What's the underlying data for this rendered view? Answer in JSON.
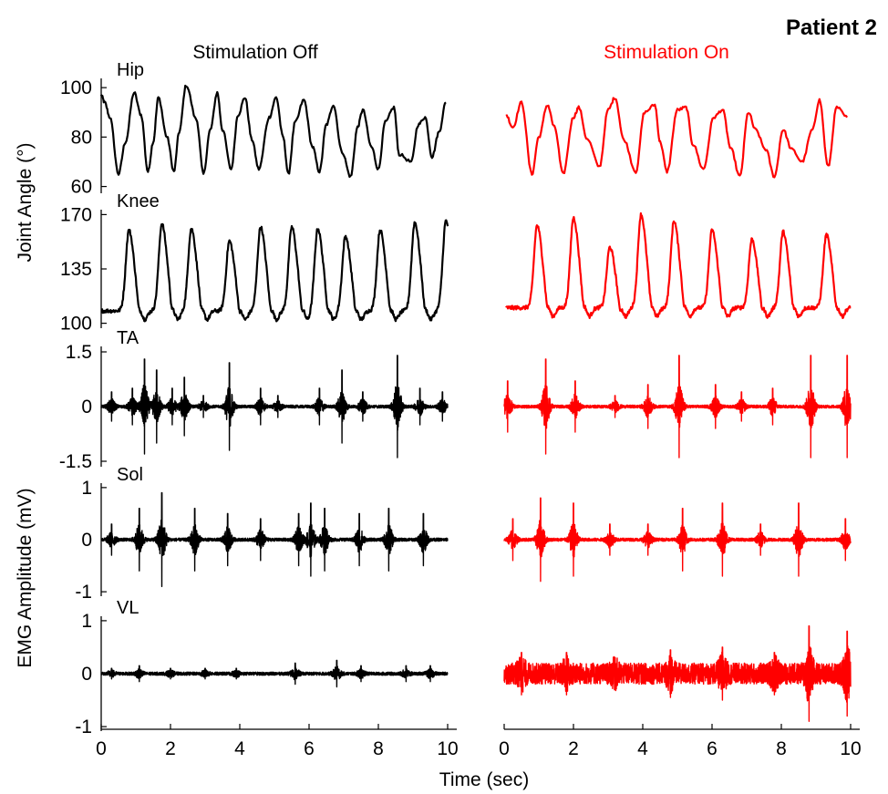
{
  "figure": {
    "title": "Patient 2",
    "col_off_title": "Stimulation Off",
    "col_on_title": "Stimulation On",
    "ylabel_angle": "Joint Angle (°)",
    "ylabel_emg": "EMG Amplitude (mV)",
    "xlabel": "Time (sec)",
    "colors": {
      "off": "#000000",
      "on": "#ff0000",
      "axis": "#000000"
    }
  },
  "chart_data": [
    {
      "type": "line",
      "panel": "hip",
      "label": "Hip",
      "x_range": [
        0,
        10
      ],
      "ylim": [
        58,
        103
      ],
      "yticks": [
        60,
        80,
        100
      ],
      "series": [
        {
          "condition": "off",
          "x": [
            0,
            0.1,
            0.25,
            0.5,
            0.7,
            0.95,
            1.15,
            1.35,
            1.5,
            1.65,
            1.9,
            2.1,
            2.25,
            2.45,
            2.75,
            2.95,
            3.15,
            3.35,
            3.5,
            3.75,
            3.95,
            4.15,
            4.35,
            4.55,
            4.85,
            5.05,
            5.25,
            5.4,
            5.6,
            5.85,
            6.1,
            6.3,
            6.5,
            6.7,
            6.95,
            7.2,
            7.4,
            7.55,
            7.8,
            8.0,
            8.2,
            8.45,
            8.6,
            8.95,
            9.15,
            9.35,
            9.55,
            9.75,
            9.95
          ],
          "y": [
            97,
            94,
            88,
            65,
            78,
            98,
            89,
            66,
            78,
            96,
            80,
            66,
            82,
            101,
            87,
            65,
            83,
            98,
            83,
            67,
            89,
            96,
            79,
            67,
            88,
            96,
            80,
            65,
            86,
            95,
            76,
            66,
            85,
            93,
            74,
            64,
            84,
            91,
            76,
            67,
            86,
            92,
            73,
            70,
            85,
            88,
            72,
            82,
            94
          ]
        },
        {
          "condition": "on",
          "x": [
            0.05,
            0.25,
            0.5,
            0.8,
            1.0,
            1.25,
            1.45,
            1.7,
            2.0,
            2.15,
            2.4,
            2.75,
            3.0,
            3.2,
            3.45,
            3.8,
            4.05,
            4.35,
            4.5,
            4.7,
            5.0,
            5.25,
            5.45,
            5.75,
            6.05,
            6.3,
            6.55,
            6.8,
            7.05,
            7.25,
            7.55,
            7.8,
            8.05,
            8.3,
            8.6,
            8.9,
            9.1,
            9.35,
            9.6,
            9.9
          ],
          "y": [
            89,
            84,
            94,
            65,
            80,
            93,
            84,
            65,
            88,
            92,
            79,
            68,
            91,
            96,
            79,
            66,
            90,
            93,
            78,
            66,
            91,
            92,
            77,
            67,
            88,
            91,
            75,
            64,
            90,
            83,
            75,
            64,
            83,
            75,
            70,
            83,
            95,
            68,
            92,
            88
          ]
        }
      ]
    },
    {
      "type": "line",
      "panel": "knee",
      "label": "Knee",
      "x_range": [
        0,
        10
      ],
      "ylim": [
        98,
        172
      ],
      "yticks": [
        100,
        135,
        170
      ],
      "series": [
        {
          "condition": "off",
          "peaks_t": [
            0.8,
            1.75,
            2.6,
            3.7,
            4.6,
            5.5,
            6.25,
            7.05,
            8.05,
            9.05,
            9.95
          ],
          "peaks_v": [
            160,
            164,
            161,
            153,
            162,
            162,
            161,
            156,
            160,
            165,
            166
          ],
          "base_v": 108,
          "trough_v": 102
        },
        {
          "condition": "on",
          "peaks_t": [
            0.95,
            2.0,
            3.05,
            3.95,
            4.9,
            6.0,
            7.15,
            8.05,
            9.3
          ],
          "peaks_v": [
            163,
            168,
            149,
            170,
            166,
            160,
            154,
            159,
            157
          ],
          "base_v": 110,
          "trough_v": 104
        }
      ]
    },
    {
      "type": "line",
      "panel": "emg_ta",
      "label": "TA",
      "x_range": [
        0,
        10
      ],
      "ylim": [
        -1.6,
        1.6
      ],
      "yticks": [
        -1.5,
        0,
        1.5
      ],
      "series": [
        {
          "condition": "off",
          "noise_amp": 0.04,
          "bursts": [
            [
              0.3,
              0.4
            ],
            [
              0.9,
              0.5
            ],
            [
              1.25,
              1.3
            ],
            [
              1.6,
              1.0
            ],
            [
              2.05,
              0.5
            ],
            [
              2.4,
              0.8
            ],
            [
              2.95,
              0.3
            ],
            [
              3.7,
              1.2
            ],
            [
              4.6,
              0.5
            ],
            [
              5.1,
              0.3
            ],
            [
              6.3,
              0.5
            ],
            [
              6.95,
              1.0
            ],
            [
              7.55,
              0.4
            ],
            [
              8.55,
              1.4
            ],
            [
              9.2,
              0.5
            ],
            [
              9.85,
              0.4
            ]
          ]
        },
        {
          "condition": "on",
          "noise_amp": 0.04,
          "bursts": [
            [
              0.1,
              0.7
            ],
            [
              1.2,
              1.3
            ],
            [
              2.05,
              0.7
            ],
            [
              3.2,
              0.3
            ],
            [
              4.15,
              0.6
            ],
            [
              5.05,
              1.4
            ],
            [
              6.1,
              0.6
            ],
            [
              6.85,
              0.4
            ],
            [
              7.75,
              0.5
            ],
            [
              8.85,
              1.4
            ],
            [
              9.9,
              1.4
            ]
          ]
        }
      ]
    },
    {
      "type": "line",
      "panel": "emg_sol",
      "label": "Sol",
      "x_range": [
        0,
        10
      ],
      "ylim": [
        -1.05,
        1.05
      ],
      "yticks": [
        -1,
        0,
        1
      ],
      "series": [
        {
          "condition": "off",
          "noise_amp": 0.03,
          "bursts": [
            [
              0.3,
              0.3
            ],
            [
              1.1,
              0.6
            ],
            [
              1.75,
              0.9
            ],
            [
              2.7,
              0.6
            ],
            [
              3.65,
              0.5
            ],
            [
              4.6,
              0.4
            ],
            [
              5.7,
              0.5
            ],
            [
              6.05,
              0.7
            ],
            [
              6.45,
              0.6
            ],
            [
              7.45,
              0.5
            ],
            [
              8.3,
              0.6
            ],
            [
              9.3,
              0.5
            ]
          ]
        },
        {
          "condition": "on",
          "noise_amp": 0.03,
          "bursts": [
            [
              0.25,
              0.4
            ],
            [
              1.05,
              0.8
            ],
            [
              2.0,
              0.7
            ],
            [
              3.05,
              0.3
            ],
            [
              4.15,
              0.3
            ],
            [
              5.15,
              0.6
            ],
            [
              6.3,
              0.7
            ],
            [
              7.4,
              0.3
            ],
            [
              8.5,
              0.7
            ],
            [
              9.85,
              0.4
            ]
          ]
        }
      ]
    },
    {
      "type": "line",
      "panel": "emg_vl",
      "label": "VL",
      "x_range": [
        0,
        10
      ],
      "ylim": [
        -1.05,
        1.05
      ],
      "yticks": [
        -1,
        0,
        1
      ],
      "series": [
        {
          "condition": "off",
          "noise_amp": 0.03,
          "bursts": [
            [
              0.3,
              0.1
            ],
            [
              1.1,
              0.15
            ],
            [
              2.0,
              0.1
            ],
            [
              3.0,
              0.1
            ],
            [
              3.9,
              0.1
            ],
            [
              5.6,
              0.2
            ],
            [
              6.8,
              0.25
            ],
            [
              7.5,
              0.15
            ],
            [
              8.8,
              0.15
            ],
            [
              9.5,
              0.15
            ]
          ]
        },
        {
          "condition": "on",
          "noise_amp": 0.2,
          "bursts": [
            [
              0.5,
              0.4
            ],
            [
              1.8,
              0.4
            ],
            [
              3.2,
              0.3
            ],
            [
              4.8,
              0.45
            ],
            [
              6.3,
              0.5
            ],
            [
              7.8,
              0.4
            ],
            [
              8.8,
              0.9
            ],
            [
              9.9,
              0.8
            ]
          ]
        }
      ]
    }
  ]
}
